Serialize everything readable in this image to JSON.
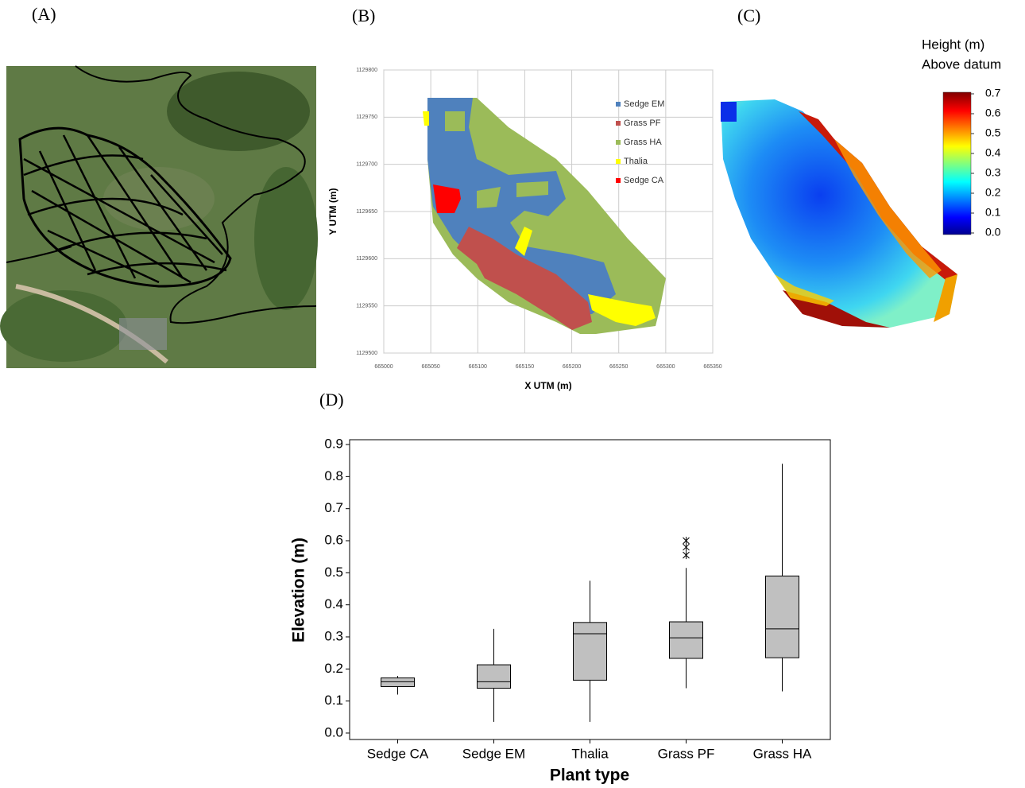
{
  "panel_labels": [
    "(A)",
    "(B)",
    "(C)",
    "(D)"
  ],
  "chart_data": [
    {
      "type": "map",
      "xlabel": "X UTM (m)",
      "ylabel": "Y UTM (m)",
      "xlim": [
        665000,
        665350
      ],
      "xticks": [
        665000,
        665050,
        665100,
        665150,
        665200,
        665250,
        665300,
        665350
      ],
      "ylim": [
        1129500,
        1129800
      ],
      "yticks": [
        1129500,
        1129550,
        1129600,
        1129650,
        1129700,
        1129750,
        1129800
      ],
      "grid": true,
      "series": [
        {
          "name": "Sedge EM",
          "color": "#4f81bd"
        },
        {
          "name": "Grass PF",
          "color": "#c0504d"
        },
        {
          "name": "Grass HA",
          "color": "#9bbb59"
        },
        {
          "name": "Thalia",
          "color": "#ffff00"
        },
        {
          "name": "Sedge CA",
          "color": "#ff0000"
        }
      ]
    },
    {
      "type": "colorbar",
      "title": "Height (m)",
      "subtitle": "Above datum",
      "ylim": [
        0,
        0.7
      ],
      "yticks": [
        {
          "value": 0,
          "label": "0.0"
        },
        0.1,
        0.2,
        0.3,
        0.4,
        0.5,
        0.6,
        0.7
      ]
    },
    {
      "type": "box",
      "xlabel": "Plant type",
      "ylabel": "Elevation (m)",
      "categories": [
        "Sedge CA",
        "Sedge EM",
        "Thalia",
        "Grass PF",
        "Grass HA"
      ],
      "min": [
        0.12,
        0.035,
        0.035,
        0.14,
        0.13
      ],
      "q1": [
        0.145,
        0.14,
        0.165,
        0.233,
        0.235
      ],
      "median": [
        0.16,
        0.16,
        0.31,
        0.297,
        0.325
      ],
      "q3": [
        0.172,
        0.213,
        0.345,
        0.347,
        0.49
      ],
      "max": [
        0.178,
        0.325,
        0.475,
        0.515,
        0.84
      ],
      "outliers": [
        [],
        [],
        [],
        [
          0.555,
          0.58,
          0.6
        ],
        []
      ],
      "color": "#c0c0c0",
      "ylim": [
        -0.02,
        0.915
      ],
      "yticks": [
        {
          "value": 0,
          "label": "0.0"
        },
        0.1,
        0.2,
        0.3,
        0.4,
        0.5,
        0.6,
        0.7,
        0.8,
        0.9
      ]
    }
  ]
}
